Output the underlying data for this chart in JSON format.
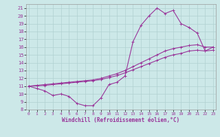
{
  "xlabel": "Windchill (Refroidissement éolien,°C)",
  "xlim": [
    -0.3,
    23.3
  ],
  "ylim": [
    8,
    21.5
  ],
  "xticks": [
    0,
    1,
    2,
    3,
    4,
    5,
    6,
    7,
    8,
    9,
    10,
    11,
    12,
    13,
    14,
    15,
    16,
    17,
    18,
    19,
    20,
    21,
    22,
    23
  ],
  "yticks": [
    8,
    9,
    10,
    11,
    12,
    13,
    14,
    15,
    16,
    17,
    18,
    19,
    20,
    21
  ],
  "bg_color": "#cce8e8",
  "line_color": "#993399",
  "grid_color": "#b0d0d0",
  "line1_x": [
    0,
    1,
    2,
    3,
    4,
    5,
    6,
    7,
    8,
    9,
    10,
    11,
    12,
    13,
    14,
    15,
    16,
    17,
    18,
    19,
    20,
    21,
    22,
    23
  ],
  "line1_y": [
    11.0,
    10.7,
    10.4,
    9.8,
    10.0,
    9.7,
    8.8,
    8.5,
    8.5,
    9.5,
    11.2,
    11.5,
    12.3,
    16.7,
    18.8,
    20.0,
    21.0,
    20.3,
    20.7,
    19.0,
    18.5,
    17.8,
    15.5,
    16.0
  ],
  "line2_x": [
    0,
    1,
    2,
    3,
    4,
    5,
    6,
    7,
    8,
    9,
    10,
    11,
    12,
    13,
    14,
    15,
    16,
    17,
    18,
    19,
    20,
    21,
    22,
    23
  ],
  "line2_y": [
    11.0,
    11.1,
    11.2,
    11.3,
    11.4,
    11.5,
    11.6,
    11.7,
    11.8,
    12.0,
    12.3,
    12.6,
    13.0,
    13.5,
    14.0,
    14.5,
    15.0,
    15.5,
    15.8,
    16.0,
    16.2,
    16.3,
    16.0,
    16.0
  ],
  "line3_x": [
    0,
    1,
    2,
    3,
    4,
    5,
    6,
    7,
    8,
    9,
    10,
    11,
    12,
    13,
    14,
    15,
    16,
    17,
    18,
    19,
    20,
    21,
    22,
    23
  ],
  "line3_y": [
    11.0,
    11.05,
    11.1,
    11.2,
    11.3,
    11.4,
    11.5,
    11.6,
    11.7,
    11.85,
    12.1,
    12.35,
    12.7,
    13.1,
    13.5,
    13.9,
    14.3,
    14.7,
    15.0,
    15.2,
    15.5,
    15.6,
    15.5,
    15.6
  ]
}
